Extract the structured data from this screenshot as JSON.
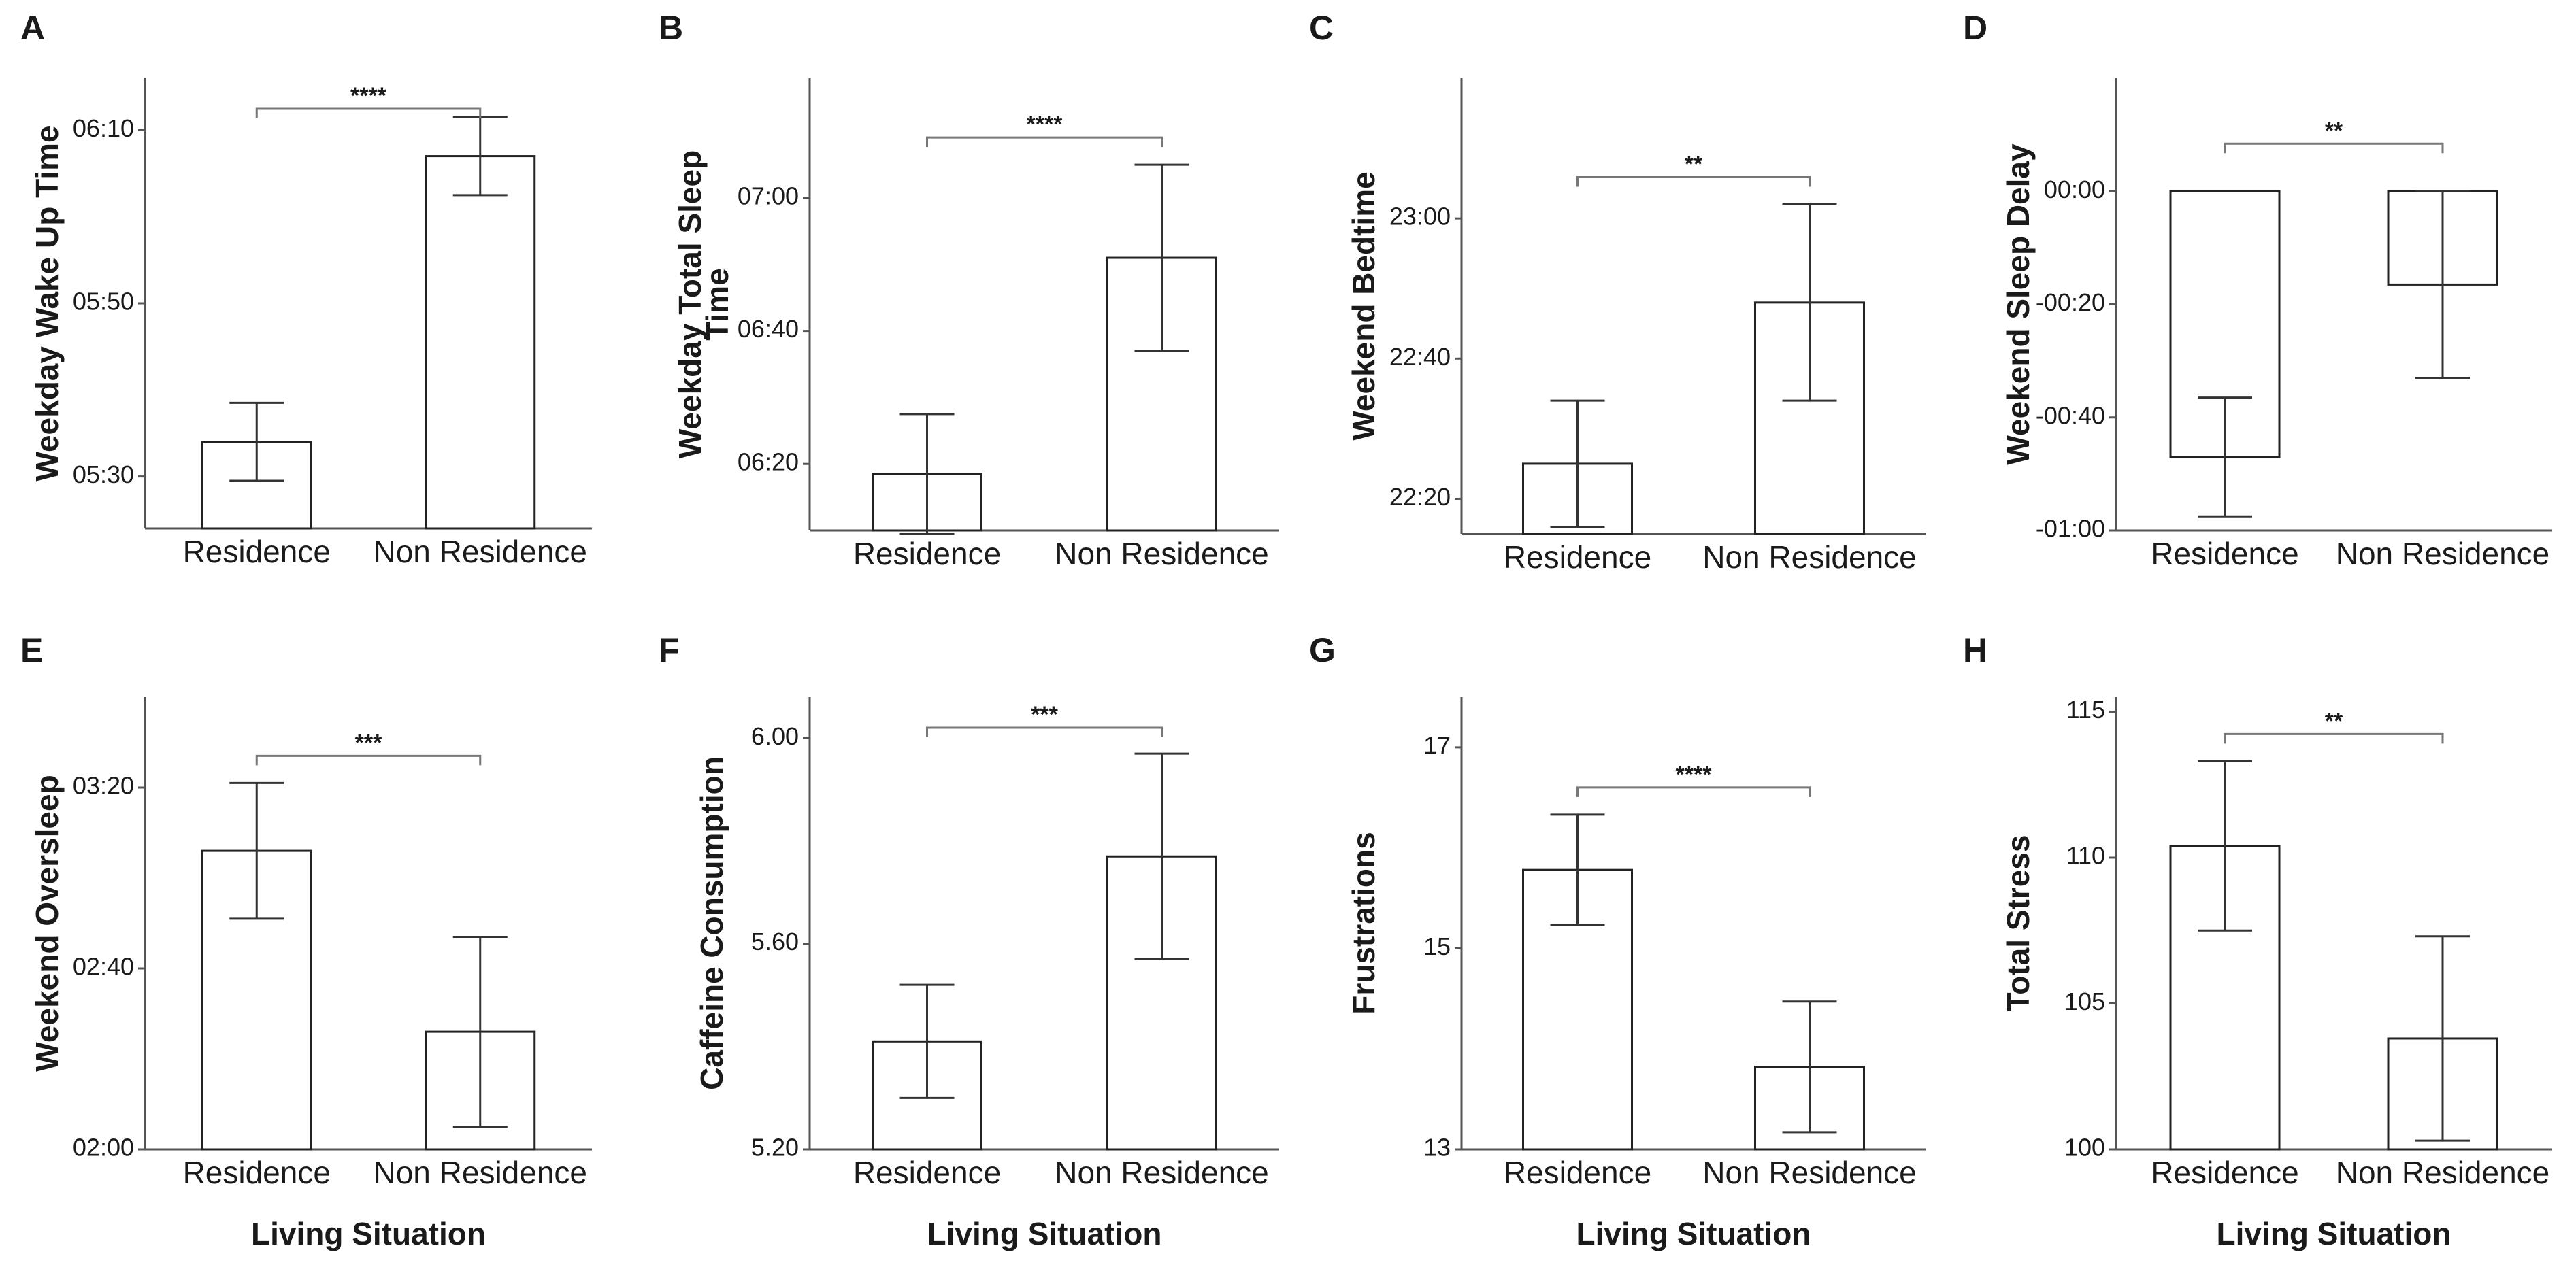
{
  "chart_data": [
    {
      "panel": "A",
      "type": "bar",
      "ylabel": "Weekday Wake Up Time",
      "xlabel": "",
      "categories": [
        "Residence",
        "Non Residence"
      ],
      "values": [
        334,
        367
      ],
      "errors": [
        4.5,
        4.5
      ],
      "ylim": [
        324,
        376
      ],
      "yticks": [
        330,
        350,
        370
      ],
      "ytick_labels": [
        "05:30",
        "05:50",
        "06:10"
      ],
      "significance": "****"
    },
    {
      "panel": "B",
      "type": "bar",
      "ylabel_lines": [
        "Weekday Total Sleep",
        "Time"
      ],
      "xlabel": "",
      "categories": [
        "Residence",
        "Non Residence"
      ],
      "values": [
        378.5,
        411
      ],
      "errors": [
        9,
        14
      ],
      "ylim": [
        370,
        438
      ],
      "yticks": [
        380,
        400,
        420
      ],
      "ytick_labels": [
        "06:20",
        "06:40",
        "07:00"
      ],
      "significance": "****"
    },
    {
      "panel": "C",
      "type": "bar",
      "ylabel": "Weekend Bedtime",
      "xlabel": "",
      "categories": [
        "Residence",
        "Non Residence"
      ],
      "values": [
        1345,
        1368
      ],
      "errors": [
        9,
        14
      ],
      "ylim": [
        1335,
        1400
      ],
      "yticks": [
        1340,
        1360,
        1380
      ],
      "ytick_labels": [
        "22:20",
        "22:40",
        "23:00"
      ],
      "significance": "**"
    },
    {
      "panel": "D",
      "type": "bar",
      "ylabel": "Weekend Sleep Delay",
      "xlabel": "",
      "categories": [
        "Residence",
        "Non Residence"
      ],
      "values": [
        -47,
        -16.5
      ],
      "errors": [
        10.5,
        16.5
      ],
      "ylim": [
        -60,
        20
      ],
      "yticks": [
        -60,
        -40,
        -20,
        0
      ],
      "ytick_labels": [
        "-01:00",
        "-00:40",
        "-00:20",
        "00:00"
      ],
      "significance": "**"
    },
    {
      "panel": "E",
      "type": "bar",
      "ylabel": "Weekend Oversleep",
      "xlabel": "Living Situation",
      "categories": [
        "Residence",
        "Non Residence"
      ],
      "values": [
        186,
        146
      ],
      "errors": [
        15,
        21
      ],
      "ylim": [
        120,
        220
      ],
      "yticks": [
        120,
        160,
        200
      ],
      "ytick_labels": [
        "02:00",
        "02:40",
        "03:20"
      ],
      "significance": "***"
    },
    {
      "panel": "F",
      "type": "bar",
      "ylabel": "Caffeine Consumption",
      "xlabel": "Living Situation",
      "categories": [
        "Residence",
        "Non Residence"
      ],
      "values": [
        5.41,
        5.77
      ],
      "errors": [
        0.11,
        0.2
      ],
      "ylim": [
        5.2,
        6.08
      ],
      "yticks": [
        5.2,
        5.6,
        6.0
      ],
      "ytick_labels": [
        "5.20",
        "5.60",
        "6.00"
      ],
      "significance": "***"
    },
    {
      "panel": "G",
      "type": "bar",
      "ylabel": "Frustrations",
      "xlabel": "Living Situation",
      "categories": [
        "Residence",
        "Non Residence"
      ],
      "values": [
        15.78,
        13.82
      ],
      "errors": [
        0.55,
        0.65
      ],
      "ylim": [
        13,
        17.5
      ],
      "yticks": [
        13,
        15,
        17
      ],
      "ytick_labels": [
        "13",
        "15",
        "17"
      ],
      "significance": "****"
    },
    {
      "panel": "H",
      "type": "bar",
      "ylabel": "Total Stress",
      "xlabel": "Living Situation",
      "categories": [
        "Residence",
        "Non Residence"
      ],
      "values": [
        110.4,
        103.8
      ],
      "errors": [
        2.9,
        3.5
      ],
      "ylim": [
        100,
        115.5
      ],
      "yticks": [
        100,
        105,
        110,
        115
      ],
      "ytick_labels": [
        "100",
        "105",
        "110",
        "115"
      ],
      "significance": "**"
    }
  ]
}
